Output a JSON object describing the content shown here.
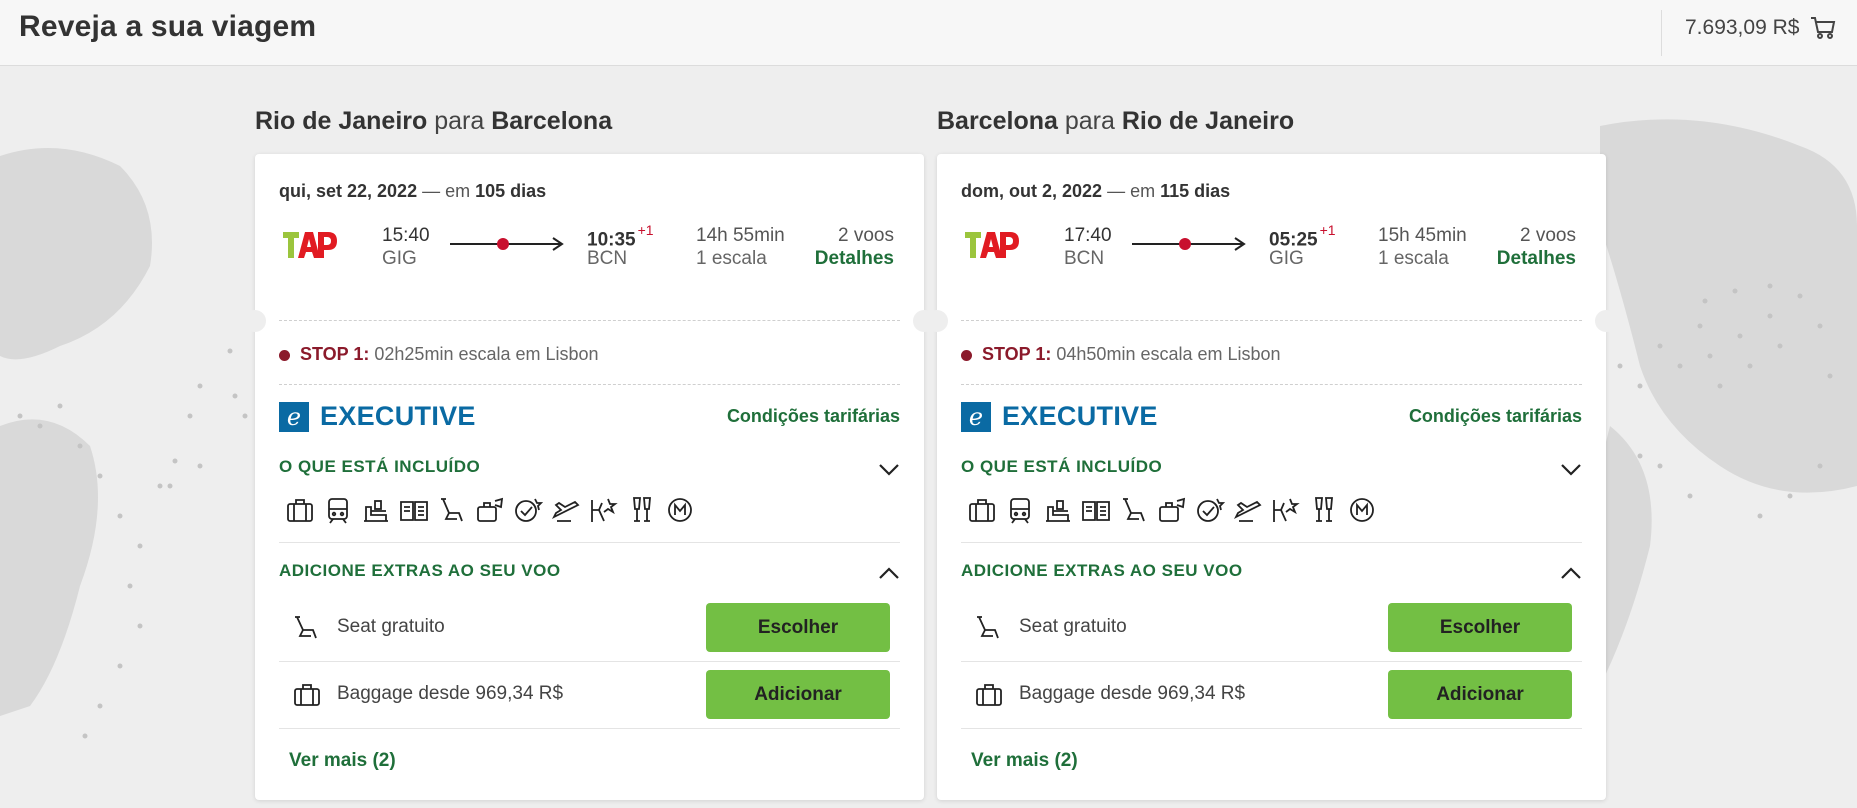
{
  "header": {
    "title": "Reveja a sua viagem",
    "cart_total": "7.693,09 R$"
  },
  "colors": {
    "accent_green": "#1f6f3a",
    "button_green": "#73bf44",
    "stop_red": "#8b1a2b",
    "executive_blue": "#0a6aa3"
  },
  "connector": "para",
  "journeys": [
    {
      "origin": "Rio de Janeiro",
      "destination": "Barcelona",
      "date": "qui, set 22, 2022",
      "date_sep": "— em",
      "days": "105 dias",
      "dep_time": "15:40",
      "dep_code": "GIG",
      "arr_time": "10:35",
      "arr_offset": "+1",
      "arr_code": "BCN",
      "duration": "14h 55min",
      "stops": "1 escala",
      "flights": "2 voos",
      "details": "Detalhes",
      "stop_label": "STOP 1:",
      "stop_text": "02h25min escala em Lisbon",
      "cabin": "EXECUTIVE",
      "fare_conditions": "Condições tarifárias",
      "included_title": "O QUE ESTÁ INCLUÍDO",
      "extras_title": "ADICIONE EXTRAS AO SEU VOO",
      "extras": [
        {
          "icon": "seat-icon",
          "text": "Seat gratuito",
          "button": "Escolher"
        },
        {
          "icon": "baggage-icon",
          "text": "Baggage desde 969,34 R$",
          "button": "Adicionar"
        }
      ],
      "more": "Ver mais (2)"
    },
    {
      "origin": "Barcelona",
      "destination": "Rio de Janeiro",
      "date": "dom, out 2, 2022",
      "date_sep": "— em",
      "days": "115 dias",
      "dep_time": "17:40",
      "dep_code": "BCN",
      "arr_time": "05:25",
      "arr_offset": "+1",
      "arr_code": "GIG",
      "duration": "15h 45min",
      "stops": "1 escala",
      "flights": "2 voos",
      "details": "Detalhes",
      "stop_label": "STOP 1:",
      "stop_text": "04h50min escala em Lisbon",
      "cabin": "EXECUTIVE",
      "fare_conditions": "Condições tarifárias",
      "included_title": "O QUE ESTÁ INCLUÍDO",
      "extras_title": "ADICIONE EXTRAS AO SEU VOO",
      "extras": [
        {
          "icon": "seat-icon",
          "text": "Seat gratuito",
          "button": "Escolher"
        },
        {
          "icon": "baggage-icon",
          "text": "Baggage desde 969,34 R$",
          "button": "Adicionar"
        }
      ],
      "more": "Ver mais (2)"
    }
  ],
  "amenity_icons": [
    "cabin-bag-icon",
    "train-icon",
    "lounge-icon",
    "menu-icon",
    "seat-icon",
    "checked-bag-icon",
    "priority-checkin-icon",
    "fast-boarding-icon",
    "fast-track-icon",
    "drinks-icon",
    "miles-icon"
  ]
}
